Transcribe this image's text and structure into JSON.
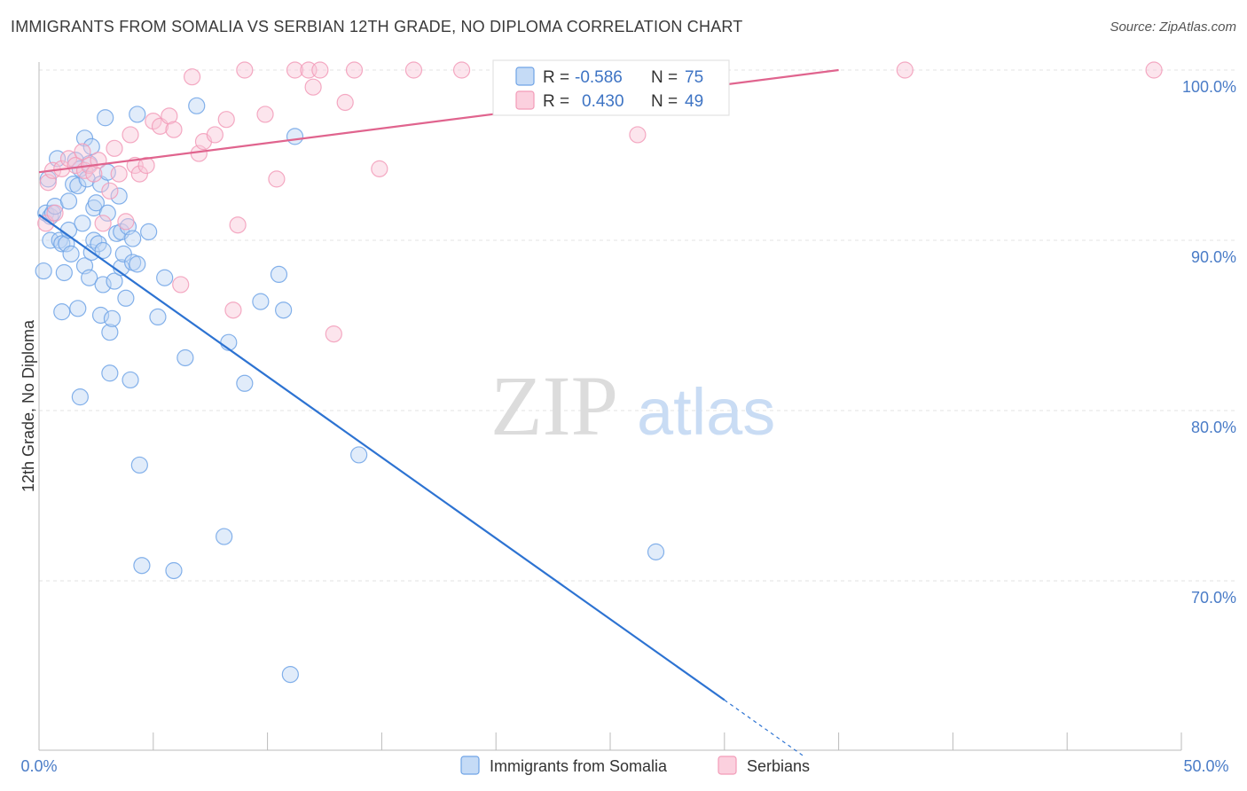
{
  "header": {
    "title": "IMMIGRANTS FROM SOMALIA VS SERBIAN 12TH GRADE, NO DIPLOMA CORRELATION CHART",
    "source": "Source: ZipAtlas.com"
  },
  "watermark": {
    "zip": "ZIP",
    "atlas": "atlas"
  },
  "stats_legend": {
    "rows": [
      {
        "r_label": "R =",
        "r_value": "-0.586",
        "n_label": "N =",
        "n_value": "75"
      },
      {
        "r_label": "R =",
        "r_value": "0.430",
        "n_label": "N =",
        "n_value": "49"
      }
    ]
  },
  "chart_data": {
    "type": "scatter",
    "title": "IMMIGRANTS FROM SOMALIA VS SERBIAN 12TH GRADE, NO DIPLOMA CORRELATION CHART",
    "ylabel": "12th Grade, No Diploma",
    "xlabel": "",
    "xlim": [
      0,
      50
    ],
    "ylim": [
      60,
      100
    ],
    "x_tick_labels": [
      "0.0%",
      "50.0%"
    ],
    "y_ticks": [
      100,
      90,
      80,
      70
    ],
    "y_tick_labels": [
      "100.0%",
      "90.0%",
      "80.0%",
      "70.0%"
    ],
    "grid": true,
    "legend_position": "bottom",
    "colors": {
      "somalia": "#6fa3e6",
      "serbians": "#f29bb8",
      "somalia_line": "#2d73d2",
      "serbians_line": "#e0648e"
    },
    "series": [
      {
        "name": "Immigrants from Somalia",
        "trend": {
          "x0": 0,
          "y0": 91.5,
          "x1": 30,
          "y1": 63.0,
          "dash_to_x": 33.5
        },
        "points": [
          [
            0.2,
            88.2
          ],
          [
            0.3,
            91.6
          ],
          [
            0.4,
            93.6
          ],
          [
            0.5,
            90.0
          ],
          [
            0.5,
            91.4
          ],
          [
            0.6,
            91.6
          ],
          [
            0.7,
            92.0
          ],
          [
            0.8,
            94.8
          ],
          [
            0.9,
            90.0
          ],
          [
            1.0,
            89.8
          ],
          [
            1.0,
            85.8
          ],
          [
            1.1,
            88.1
          ],
          [
            1.2,
            89.8
          ],
          [
            1.3,
            90.6
          ],
          [
            1.3,
            92.3
          ],
          [
            1.4,
            89.2
          ],
          [
            1.5,
            93.3
          ],
          [
            1.6,
            94.7
          ],
          [
            1.7,
            93.2
          ],
          [
            1.8,
            94.2
          ],
          [
            1.8,
            80.8
          ],
          [
            1.9,
            91.0
          ],
          [
            2.0,
            96.0
          ],
          [
            2.0,
            88.5
          ],
          [
            2.1,
            93.6
          ],
          [
            2.2,
            94.5
          ],
          [
            2.2,
            87.8
          ],
          [
            2.3,
            89.3
          ],
          [
            2.3,
            95.5
          ],
          [
            2.4,
            91.9
          ],
          [
            2.4,
            90.0
          ],
          [
            2.5,
            92.2
          ],
          [
            2.6,
            89.8
          ],
          [
            2.7,
            93.3
          ],
          [
            2.7,
            85.6
          ],
          [
            2.8,
            89.4
          ],
          [
            2.8,
            87.4
          ],
          [
            2.9,
            97.2
          ],
          [
            3.0,
            94.0
          ],
          [
            3.0,
            91.6
          ],
          [
            3.1,
            82.2
          ],
          [
            3.1,
            84.6
          ],
          [
            3.2,
            85.4
          ],
          [
            3.3,
            87.6
          ],
          [
            3.4,
            90.4
          ],
          [
            3.5,
            92.6
          ],
          [
            3.6,
            88.4
          ],
          [
            3.6,
            90.5
          ],
          [
            3.7,
            89.2
          ],
          [
            3.8,
            86.6
          ],
          [
            3.9,
            90.8
          ],
          [
            4.0,
            81.8
          ],
          [
            4.1,
            88.7
          ],
          [
            4.1,
            90.1
          ],
          [
            4.3,
            97.4
          ],
          [
            4.4,
            76.8
          ],
          [
            4.5,
            70.9
          ],
          [
            4.8,
            90.5
          ],
          [
            5.2,
            85.5
          ],
          [
            5.5,
            87.8
          ],
          [
            5.9,
            70.6
          ],
          [
            6.4,
            83.1
          ],
          [
            6.9,
            97.9
          ],
          [
            8.1,
            72.6
          ],
          [
            8.3,
            84.0
          ],
          [
            9.0,
            81.6
          ],
          [
            9.7,
            86.4
          ],
          [
            10.5,
            88.0
          ],
          [
            10.7,
            85.9
          ],
          [
            11.2,
            96.1
          ],
          [
            14.0,
            77.4
          ],
          [
            27.0,
            71.7
          ],
          [
            11.0,
            64.5
          ],
          [
            1.7,
            86.0
          ],
          [
            4.3,
            88.6
          ]
        ]
      },
      {
        "name": "Serbians",
        "trend": {
          "x0": 0,
          "y0": 94.0,
          "x1": 35,
          "y1": 100.0
        },
        "points": [
          [
            0.3,
            91.0
          ],
          [
            0.4,
            93.4
          ],
          [
            0.6,
            94.1
          ],
          [
            0.7,
            91.6
          ],
          [
            1.0,
            94.2
          ],
          [
            1.3,
            94.8
          ],
          [
            1.6,
            94.4
          ],
          [
            1.9,
            95.2
          ],
          [
            2.0,
            94.1
          ],
          [
            2.2,
            94.4
          ],
          [
            2.4,
            93.9
          ],
          [
            2.6,
            94.7
          ],
          [
            2.8,
            91.0
          ],
          [
            3.1,
            92.9
          ],
          [
            3.3,
            95.4
          ],
          [
            3.5,
            93.9
          ],
          [
            3.8,
            91.1
          ],
          [
            4.0,
            96.2
          ],
          [
            4.2,
            94.4
          ],
          [
            4.4,
            93.9
          ],
          [
            4.7,
            94.4
          ],
          [
            5.0,
            97.0
          ],
          [
            5.3,
            96.7
          ],
          [
            5.7,
            97.3
          ],
          [
            5.9,
            96.5
          ],
          [
            6.2,
            87.4
          ],
          [
            6.7,
            99.6
          ],
          [
            7.0,
            95.1
          ],
          [
            7.2,
            95.8
          ],
          [
            7.7,
            96.2
          ],
          [
            8.2,
            97.1
          ],
          [
            8.5,
            85.9
          ],
          [
            8.7,
            90.9
          ],
          [
            9.0,
            100.0
          ],
          [
            9.9,
            97.4
          ],
          [
            10.4,
            93.6
          ],
          [
            11.2,
            100.0
          ],
          [
            11.8,
            100.0
          ],
          [
            12.0,
            99.0
          ],
          [
            12.3,
            100.0
          ],
          [
            12.9,
            84.5
          ],
          [
            13.4,
            98.1
          ],
          [
            13.8,
            100.0
          ],
          [
            14.9,
            94.2
          ],
          [
            16.4,
            100.0
          ],
          [
            18.5,
            100.0
          ],
          [
            26.2,
            96.2
          ],
          [
            37.9,
            100.0
          ],
          [
            48.8,
            100.0
          ]
        ]
      }
    ]
  },
  "bottom_legend": {
    "items": [
      {
        "label": "Immigrants from Somalia"
      },
      {
        "label": "Serbians"
      }
    ]
  }
}
